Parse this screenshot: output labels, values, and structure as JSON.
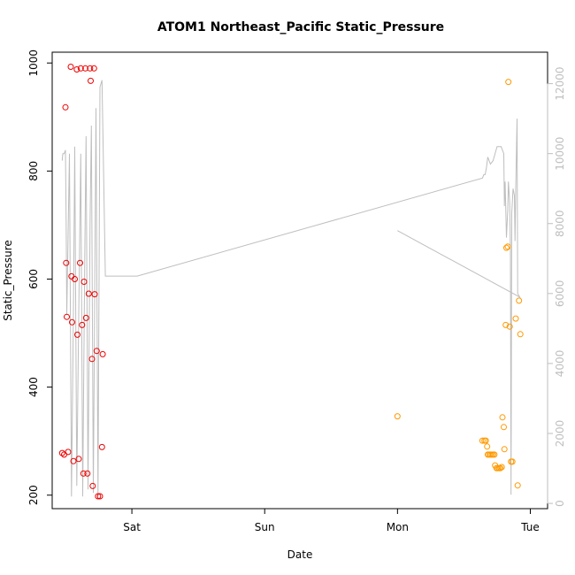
{
  "chart_data": {
    "type": "scatter",
    "title": "ATOM1 Northeast_Pacific Static_Pressure",
    "xlabel": "Date",
    "ylabel": "Static_Pressure",
    "x_unit": "days since Fri 00:00",
    "x_ticks": [
      {
        "x": 1,
        "label": "Sat"
      },
      {
        "x": 2,
        "label": "Sun"
      },
      {
        "x": 3,
        "label": "Mon"
      },
      {
        "x": 4,
        "label": "Tue"
      }
    ],
    "xlim": [
      0.4,
      4.13
    ],
    "ylim_left": [
      175,
      1020
    ],
    "yticks_left": [
      200,
      400,
      600,
      800,
      1000
    ],
    "ylim_right": [
      -150,
      12900
    ],
    "yticks_right": [
      0,
      2000,
      4000,
      6000,
      8000,
      10000,
      12000
    ],
    "colors": {
      "red": "#ee0000",
      "orange": "#ff9900",
      "line": "#bebebe"
    },
    "series": [
      {
        "color": "red",
        "axis": "left",
        "points": [
          [
            0.475,
            278
          ],
          [
            0.49,
            275
          ],
          [
            0.5,
            918
          ],
          [
            0.505,
            630
          ],
          [
            0.51,
            530
          ],
          [
            0.52,
            280
          ],
          [
            0.54,
            993
          ],
          [
            0.545,
            605
          ],
          [
            0.55,
            520
          ],
          [
            0.56,
            263
          ],
          [
            0.57,
            600
          ],
          [
            0.585,
            988
          ],
          [
            0.59,
            497
          ],
          [
            0.6,
            267
          ],
          [
            0.61,
            630
          ],
          [
            0.615,
            990
          ],
          [
            0.625,
            515
          ],
          [
            0.635,
            240
          ],
          [
            0.64,
            595
          ],
          [
            0.65,
            990
          ],
          [
            0.655,
            528
          ],
          [
            0.665,
            240
          ],
          [
            0.675,
            573
          ],
          [
            0.685,
            990
          ],
          [
            0.69,
            967
          ],
          [
            0.7,
            452
          ],
          [
            0.705,
            217
          ],
          [
            0.715,
            990
          ],
          [
            0.72,
            572
          ],
          [
            0.735,
            467
          ],
          [
            0.745,
            198
          ],
          [
            0.76,
            198
          ],
          [
            0.775,
            289
          ],
          [
            0.78,
            461
          ]
        ]
      },
      {
        "color": "orange",
        "axis": "left",
        "points": [
          [
            3.0,
            346
          ],
          [
            3.64,
            301
          ],
          [
            3.655,
            301
          ],
          [
            3.665,
            301
          ],
          [
            3.675,
            290
          ],
          [
            3.68,
            275
          ],
          [
            3.69,
            275
          ],
          [
            3.7,
            275
          ],
          [
            3.71,
            275
          ],
          [
            3.72,
            275
          ],
          [
            3.73,
            275
          ],
          [
            3.735,
            255
          ],
          [
            3.745,
            250
          ],
          [
            3.755,
            250
          ],
          [
            3.765,
            250
          ],
          [
            3.775,
            250
          ],
          [
            3.785,
            252
          ],
          [
            3.79,
            344
          ],
          [
            3.8,
            326
          ],
          [
            3.805,
            285
          ],
          [
            3.815,
            515
          ],
          [
            3.82,
            658
          ],
          [
            3.83,
            660
          ],
          [
            3.835,
            965
          ],
          [
            3.845,
            512
          ],
          [
            3.855,
            262
          ],
          [
            3.865,
            262
          ],
          [
            3.89,
            527
          ],
          [
            3.905,
            218
          ],
          [
            3.915,
            560
          ],
          [
            3.925,
            498
          ]
        ]
      }
    ],
    "line_series": {
      "color": "line",
      "axis": "right",
      "points": [
        [
          0.475,
          9800
        ],
        [
          0.48,
          10000
        ],
        [
          0.49,
          10000
        ],
        [
          0.5,
          10100
        ],
        [
          0.505,
          8000
        ],
        [
          0.51,
          5400
        ],
        [
          0.53,
          10000
        ],
        [
          0.545,
          200
        ],
        [
          0.56,
          5500
        ],
        [
          0.57,
          10200
        ],
        [
          0.585,
          500
        ],
        [
          0.6,
          5400
        ],
        [
          0.615,
          10000
        ],
        [
          0.63,
          200
        ],
        [
          0.645,
          7000
        ],
        [
          0.655,
          10500
        ],
        [
          0.67,
          400
        ],
        [
          0.685,
          8000
        ],
        [
          0.695,
          10800
        ],
        [
          0.71,
          300
        ],
        [
          0.73,
          11300
        ],
        [
          0.745,
          200
        ],
        [
          0.76,
          11900
        ],
        [
          0.775,
          12100
        ],
        [
          0.8,
          6500
        ],
        [
          1.04,
          6500
        ],
        [
          3.64,
          9300
        ],
        [
          3.65,
          9400
        ],
        [
          3.66,
          9400
        ],
        [
          3.67,
          9600
        ],
        [
          3.68,
          9900
        ],
        [
          3.7,
          9700
        ],
        [
          3.72,
          9800
        ],
        [
          3.75,
          10200
        ],
        [
          3.78,
          10200
        ],
        [
          3.8,
          10000
        ],
        [
          3.805,
          8500
        ],
        [
          3.81,
          9200
        ],
        [
          3.82,
          7600
        ],
        [
          3.83,
          8400
        ],
        [
          3.835,
          9200
        ],
        [
          3.845,
          8600
        ],
        [
          3.85,
          7200
        ],
        [
          3.855,
          250
        ],
        [
          3.86,
          8300
        ],
        [
          3.87,
          9000
        ],
        [
          3.88,
          8800
        ],
        [
          3.885,
          7500
        ],
        [
          3.89,
          9000
        ],
        [
          3.9,
          11000
        ],
        [
          3.905,
          6000
        ],
        [
          3.92,
          5900
        ],
        [
          3.0,
          7800
        ]
      ]
    },
    "grid": false,
    "legend": "none"
  }
}
